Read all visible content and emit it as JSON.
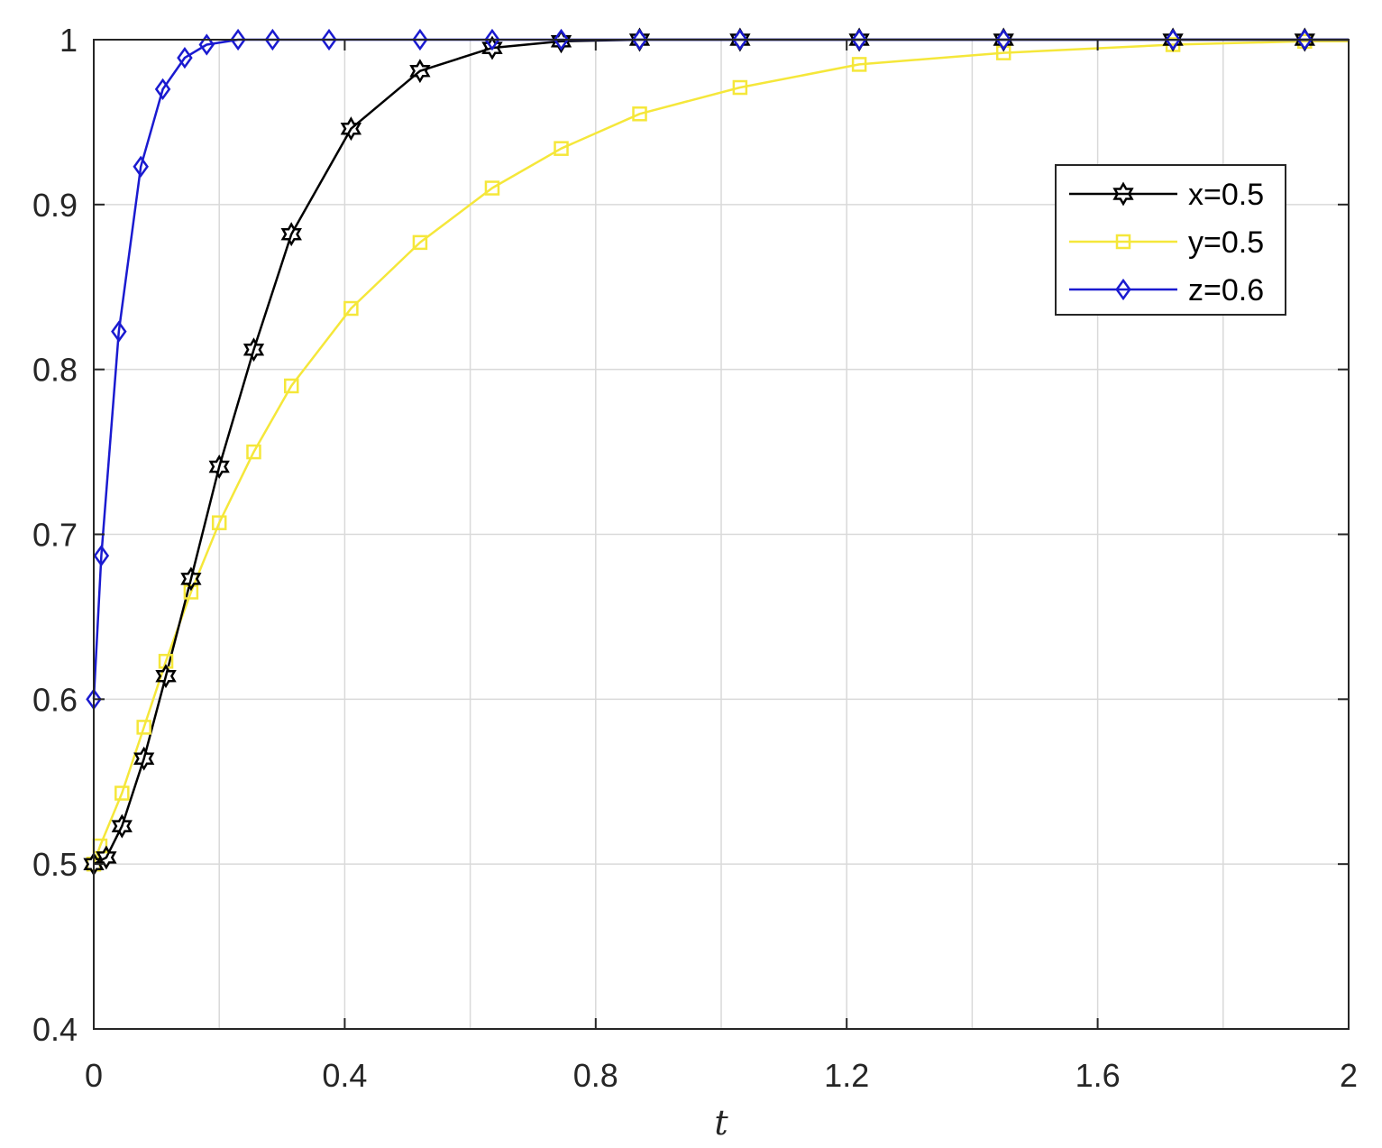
{
  "chart_data": {
    "type": "line",
    "title": "",
    "xlabel": "t",
    "ylabel": "",
    "xlim": [
      0,
      2
    ],
    "ylim": [
      0.4,
      1
    ],
    "grid": true,
    "legend_position": "top-right",
    "x_ticks": [
      "0",
      "0.4",
      "0.8",
      "1.2",
      "1.6",
      "2"
    ],
    "x_tick_values": [
      0,
      0.4,
      0.8,
      1.2,
      1.6,
      2
    ],
    "y_ticks": [
      "0.4",
      "0.5",
      "0.6",
      "0.7",
      "0.8",
      "0.9",
      "1"
    ],
    "y_tick_values": [
      0.4,
      0.5,
      0.6,
      0.7,
      0.8,
      0.9,
      1
    ],
    "extra_grid_x": [
      0.2,
      0.6,
      1.0,
      1.4,
      1.8
    ],
    "series": [
      {
        "name": "x=0.5",
        "color": "#000000",
        "marker": "hexagram",
        "x": [
          0,
          0.02,
          0.045,
          0.08,
          0.115,
          0.155,
          0.2,
          0.255,
          0.315,
          0.41,
          0.52,
          0.635,
          0.745,
          0.87,
          1.03,
          1.22,
          1.45,
          1.72,
          1.93,
          2.0
        ],
        "y": [
          0.5,
          0.504,
          0.523,
          0.564,
          0.614,
          0.673,
          0.741,
          0.812,
          0.882,
          0.946,
          0.981,
          0.995,
          0.999,
          1.0,
          1.0,
          1.0,
          1.0,
          1.0,
          1.0,
          1.0
        ],
        "marker_x": [
          0,
          0.02,
          0.045,
          0.08,
          0.115,
          0.155,
          0.2,
          0.255,
          0.315,
          0.41,
          0.52,
          0.635,
          0.745,
          0.87,
          1.03,
          1.22,
          1.45,
          1.72,
          1.93
        ],
        "marker_y": [
          0.5,
          0.504,
          0.523,
          0.564,
          0.614,
          0.673,
          0.741,
          0.812,
          0.882,
          0.946,
          0.981,
          0.995,
          0.999,
          1.0,
          1.0,
          1.0,
          1.0,
          1.0,
          1.0
        ]
      },
      {
        "name": "y=0.5",
        "color": "#f5e73a",
        "marker": "square",
        "x": [
          0,
          0.01,
          0.045,
          0.08,
          0.115,
          0.155,
          0.2,
          0.255,
          0.315,
          0.41,
          0.52,
          0.635,
          0.745,
          0.87,
          1.03,
          1.22,
          1.45,
          1.72,
          1.93,
          2.0
        ],
        "y": [
          0.5,
          0.511,
          0.543,
          0.583,
          0.623,
          0.665,
          0.707,
          0.75,
          0.79,
          0.837,
          0.877,
          0.91,
          0.934,
          0.955,
          0.971,
          0.985,
          0.992,
          0.997,
          0.999,
          0.999
        ],
        "marker_x": [
          0,
          0.01,
          0.045,
          0.08,
          0.115,
          0.155,
          0.2,
          0.255,
          0.315,
          0.41,
          0.52,
          0.635,
          0.745,
          0.87,
          1.03,
          1.22,
          1.45,
          1.72,
          1.93
        ],
        "marker_y": [
          0.5,
          0.511,
          0.543,
          0.583,
          0.623,
          0.665,
          0.707,
          0.75,
          0.79,
          0.837,
          0.877,
          0.91,
          0.934,
          0.955,
          0.971,
          0.985,
          0.992,
          0.997,
          0.999
        ]
      },
      {
        "name": "z=0.6",
        "color": "#1a1ad0",
        "marker": "diamond",
        "x": [
          0,
          0.012,
          0.04,
          0.075,
          0.11,
          0.145,
          0.18,
          0.23,
          0.285,
          0.375,
          0.52,
          0.635,
          0.745,
          0.87,
          1.03,
          1.22,
          1.45,
          1.72,
          1.93,
          2.0
        ],
        "y": [
          0.6,
          0.687,
          0.823,
          0.923,
          0.97,
          0.989,
          0.997,
          1.0,
          1.0,
          1.0,
          1.0,
          1.0,
          1.0,
          1.0,
          1.0,
          1.0,
          1.0,
          1.0,
          1.0,
          1.0
        ],
        "marker_x": [
          0,
          0.012,
          0.04,
          0.075,
          0.11,
          0.145,
          0.18,
          0.23,
          0.285,
          0.375,
          0.52,
          0.635,
          0.745,
          0.87,
          1.03,
          1.22,
          1.45,
          1.72,
          1.93
        ],
        "marker_y": [
          0.6,
          0.687,
          0.823,
          0.923,
          0.97,
          0.989,
          0.997,
          1.0,
          1.0,
          1.0,
          1.0,
          1.0,
          1.0,
          1.0,
          1.0,
          1.0,
          1.0,
          1.0,
          1.0
        ]
      }
    ]
  }
}
